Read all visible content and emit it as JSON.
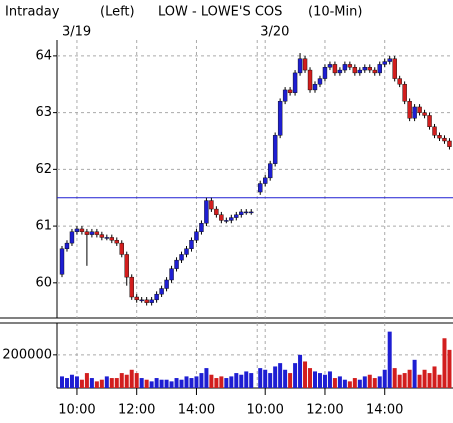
{
  "chart_data": [
    {
      "type": "candlestick",
      "label": "Intraday",
      "mode": "(Left)",
      "title": "LOW - LOWE'S COS",
      "interval": "(10-Min)",
      "up_color": "#1e1ed2",
      "down_color": "#d21e1e",
      "reference_line": 61.5,
      "reference_color": "#1e1ed2",
      "ylim": [
        59.38,
        64.28
      ],
      "yticks": [
        60,
        61,
        62,
        63,
        64
      ],
      "grid": true,
      "sessions": [
        {
          "label": "3/19",
          "open": [
            60.15,
            60.6,
            60.7,
            60.9,
            60.95,
            60.9,
            60.85,
            60.9,
            60.85,
            60.8,
            60.8,
            60.75,
            60.7,
            60.5,
            60.1,
            59.75,
            59.7,
            59.7,
            59.65,
            59.7,
            59.8,
            59.9,
            60.05,
            60.25,
            60.4,
            60.5,
            60.6,
            60.75,
            60.9,
            61.05,
            61.45,
            61.3,
            61.2,
            61.1,
            61.1,
            61.15,
            61.2,
            61.25,
            61.25
          ],
          "high": [
            60.65,
            60.75,
            60.95,
            61.0,
            61.0,
            60.95,
            60.95,
            60.95,
            60.9,
            60.85,
            60.85,
            60.8,
            60.75,
            60.55,
            60.15,
            59.8,
            59.75,
            59.75,
            59.75,
            59.85,
            59.95,
            60.1,
            60.3,
            60.45,
            60.55,
            60.65,
            60.8,
            60.95,
            61.1,
            61.5,
            61.5,
            61.35,
            61.25,
            61.15,
            61.2,
            61.25,
            61.3,
            61.3,
            61.3
          ],
          "low": [
            60.1,
            60.55,
            60.65,
            60.85,
            60.85,
            60.3,
            60.8,
            60.8,
            60.75,
            60.75,
            60.7,
            60.65,
            60.45,
            59.95,
            59.7,
            59.65,
            59.65,
            59.6,
            59.6,
            59.65,
            59.75,
            59.85,
            60.0,
            60.2,
            60.35,
            60.45,
            60.55,
            60.7,
            60.85,
            61.0,
            61.25,
            61.15,
            61.05,
            61.05,
            61.05,
            61.1,
            61.15,
            61.2,
            61.2
          ],
          "close": [
            60.6,
            60.7,
            60.9,
            60.95,
            60.9,
            60.85,
            60.9,
            60.85,
            60.8,
            60.8,
            60.75,
            60.7,
            60.5,
            60.1,
            59.75,
            59.7,
            59.7,
            59.65,
            59.7,
            59.8,
            59.9,
            60.05,
            60.25,
            60.4,
            60.5,
            60.6,
            60.75,
            60.9,
            61.05,
            61.45,
            61.3,
            61.2,
            61.1,
            61.1,
            61.15,
            61.2,
            61.25,
            61.25,
            61.25
          ]
        },
        {
          "label": "3/20",
          "open": [
            61.6,
            61.75,
            61.85,
            62.1,
            62.6,
            63.2,
            63.4,
            63.35,
            63.7,
            63.95,
            63.75,
            63.4,
            63.5,
            63.6,
            63.8,
            63.85,
            63.7,
            63.75,
            63.85,
            63.8,
            63.7,
            63.75,
            63.8,
            63.75,
            63.7,
            63.85,
            63.9,
            63.95,
            63.6,
            63.5,
            63.2,
            62.9,
            63.1,
            63.0,
            62.95,
            62.75,
            62.6,
            62.55,
            62.5
          ],
          "high": [
            61.8,
            61.9,
            62.15,
            62.65,
            63.25,
            63.45,
            63.45,
            63.75,
            64.05,
            64.0,
            63.8,
            63.55,
            63.65,
            63.85,
            63.9,
            63.9,
            63.8,
            63.9,
            63.9,
            63.85,
            63.8,
            63.85,
            63.85,
            63.8,
            63.9,
            63.95,
            64.0,
            64.0,
            63.65,
            63.55,
            63.25,
            63.15,
            63.15,
            63.05,
            63.0,
            62.8,
            62.65,
            62.6,
            62.55
          ],
          "low": [
            61.55,
            61.7,
            61.8,
            62.05,
            62.55,
            63.15,
            63.3,
            63.3,
            63.65,
            63.7,
            63.35,
            63.35,
            63.45,
            63.55,
            63.75,
            63.65,
            63.65,
            63.7,
            63.75,
            63.65,
            63.65,
            63.7,
            63.7,
            63.65,
            63.65,
            63.8,
            63.85,
            63.55,
            63.45,
            63.15,
            62.85,
            62.85,
            62.95,
            62.9,
            62.7,
            62.55,
            62.5,
            62.45,
            62.35
          ],
          "close": [
            61.75,
            61.85,
            62.1,
            62.6,
            63.2,
            63.4,
            63.35,
            63.7,
            63.95,
            63.75,
            63.4,
            63.5,
            63.6,
            63.8,
            63.85,
            63.7,
            63.75,
            63.85,
            63.8,
            63.7,
            63.75,
            63.8,
            63.75,
            63.7,
            63.85,
            63.9,
            63.95,
            63.6,
            63.5,
            63.2,
            62.9,
            63.1,
            63.0,
            62.95,
            62.75,
            62.6,
            62.55,
            62.5,
            62.4
          ]
        }
      ]
    },
    {
      "type": "bar",
      "ylim": [
        0,
        380000
      ],
      "yticks": [
        200000
      ],
      "grid": true,
      "sessions": [
        {
          "categories": [
            null,
            null,
            null,
            "10:00",
            null,
            null,
            null,
            null,
            null,
            null,
            null,
            null,
            null,
            null,
            null,
            "12:00",
            null,
            null,
            null,
            null,
            null,
            null,
            null,
            null,
            null,
            null,
            null,
            "14:00",
            null,
            null,
            null,
            null,
            null,
            null,
            null,
            null,
            null,
            null,
            null
          ],
          "values": [
            70000,
            60000,
            80000,
            70000,
            50000,
            90000,
            60000,
            40000,
            50000,
            70000,
            60000,
            60000,
            90000,
            80000,
            110000,
            90000,
            60000,
            50000,
            40000,
            60000,
            50000,
            50000,
            40000,
            60000,
            50000,
            70000,
            60000,
            70000,
            90000,
            120000,
            80000,
            60000,
            70000,
            60000,
            70000,
            90000,
            80000,
            100000,
            90000
          ]
        },
        {
          "categories": [
            null,
            "10:00",
            null,
            null,
            null,
            null,
            null,
            null,
            null,
            null,
            null,
            null,
            null,
            "12:00",
            null,
            null,
            null,
            null,
            null,
            null,
            null,
            null,
            null,
            null,
            null,
            "14:00",
            null,
            null,
            null,
            null,
            null,
            null,
            null,
            null,
            null,
            null,
            null,
            null,
            null
          ],
          "values": [
            120000,
            110000,
            90000,
            130000,
            150000,
            110000,
            90000,
            150000,
            200000,
            160000,
            120000,
            100000,
            90000,
            80000,
            100000,
            60000,
            70000,
            50000,
            40000,
            60000,
            50000,
            70000,
            80000,
            60000,
            70000,
            110000,
            340000,
            120000,
            80000,
            90000,
            110000,
            170000,
            80000,
            110000,
            90000,
            130000,
            80000,
            300000,
            230000
          ]
        }
      ]
    }
  ]
}
